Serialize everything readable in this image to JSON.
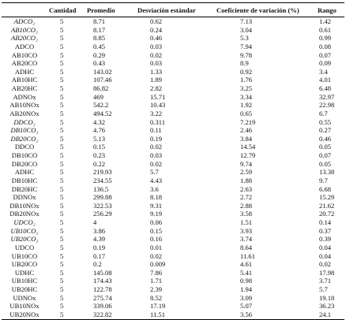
{
  "table": {
    "header": [
      "Cantidad",
      "Promedio",
      "Desviación estándar",
      "Coeficiente de variación (%)",
      "Rango"
    ],
    "rows": [
      [
        "ADCO₂",
        "5",
        "8.71",
        "0.62",
        "7.13",
        "1.42"
      ],
      [
        "AB10CO₂",
        "5",
        "8.17",
        "0.24",
        "3.04",
        "0.61"
      ],
      [
        "AB20CO₂",
        "5",
        "8.85",
        "0.46",
        "5.3",
        "0.99"
      ],
      [
        "ADCO",
        "5",
        "0.45",
        "0.03",
        "7.94",
        "0.08"
      ],
      [
        "AB10CO",
        "5",
        "0.29",
        "0.02",
        "9.78",
        "0.07"
      ],
      [
        "AB20CO",
        "5",
        "0.43",
        "0.03",
        "8.9",
        "0.09"
      ],
      [
        "ADHC",
        "5",
        "143.02",
        "1.33",
        "0.92",
        "3.4"
      ],
      [
        "AB10HC",
        "5",
        "107.46",
        "1.89",
        "1.76",
        "4.01"
      ],
      [
        "AB20HC",
        "5",
        "86.82",
        "2.82",
        "3.25",
        "6.48"
      ],
      [
        "ADNOx",
        "5",
        "469",
        "15.71",
        "3.34",
        "32.97"
      ],
      [
        "AB10NOx",
        "5",
        "542.2",
        "10.43",
        "1.92",
        "22.98"
      ],
      [
        "AB20NOx",
        "5",
        "494.52",
        "3.22",
        "0.65",
        "6.7"
      ],
      [
        "DDCO₂",
        "5",
        "4.32",
        "0.311",
        "7.219",
        "0.55"
      ],
      [
        "DB10CO₂",
        "5",
        "4.76",
        "0.11",
        "2.46",
        "0.27"
      ],
      [
        "DB20CO₂",
        "5",
        "5.13",
        "0.19",
        "3.84",
        "0.46"
      ],
      [
        "DDCO",
        "5",
        "0.15",
        "0.02",
        "14.54",
        "0.05"
      ],
      [
        "DB10CO",
        "5",
        "0.23",
        "0.03",
        "12.79",
        "0.07"
      ],
      [
        "DB20CO",
        "5",
        "0.22",
        "0.02",
        "9.74",
        "0.05"
      ],
      [
        "ADHC",
        "5",
        "219.93",
        "5.7",
        "2.59",
        "13.38"
      ],
      [
        "DB10HC",
        "5",
        "234.55",
        "4.43",
        "1.88",
        "9.7"
      ],
      [
        "DB20HC",
        "5",
        "136.5",
        "3.6",
        "2.63",
        "6.68"
      ],
      [
        "DDNOx",
        "5",
        "299.88",
        "8.18",
        "2.72",
        "15.29"
      ],
      [
        "DB10NOx",
        "5",
        "322.53",
        "9.31",
        "2.88",
        "21.62"
      ],
      [
        "DB20NOx",
        "5",
        "256.29",
        "9.19",
        "3.58",
        "20.72"
      ],
      [
        "UDCO₂",
        "5",
        "4",
        "0.06",
        "1.51",
        "0.14"
      ],
      [
        "UB10CO₂",
        "5",
        "3.86",
        "0.15",
        "3.93",
        "0.37"
      ],
      [
        "UB20CO₂",
        "5",
        "4.39",
        "0.16",
        "3.74",
        "0.39"
      ],
      [
        "UDCO",
        "5",
        "0.19",
        "0.01",
        "8.64",
        "0.04"
      ],
      [
        "UB10CO",
        "5",
        "0.17",
        "0.02",
        "11.61",
        "0.04"
      ],
      [
        "UB20CO",
        "5",
        "0.2",
        "0.009",
        "4.61",
        "0.02"
      ],
      [
        "UDHC",
        "5",
        "145.08",
        "7.86",
        "5.41",
        "17.98"
      ],
      [
        "UB10HC",
        "5",
        "174.43",
        "1.71",
        "0.98",
        "3.71"
      ],
      [
        "UB20HC",
        "5",
        "122.78",
        "2.39",
        "1.94",
        "5.7"
      ],
      [
        "UDNOx",
        "5",
        "275.74",
        "8.52",
        "3.09",
        "19.18"
      ],
      [
        "UB10NOx",
        "5",
        "339.06",
        "17.19",
        "5.07",
        "36.23"
      ],
      [
        "UB20NOx",
        "5",
        "322.82",
        "11.51",
        "3.56",
        "24.1"
      ]
    ]
  }
}
